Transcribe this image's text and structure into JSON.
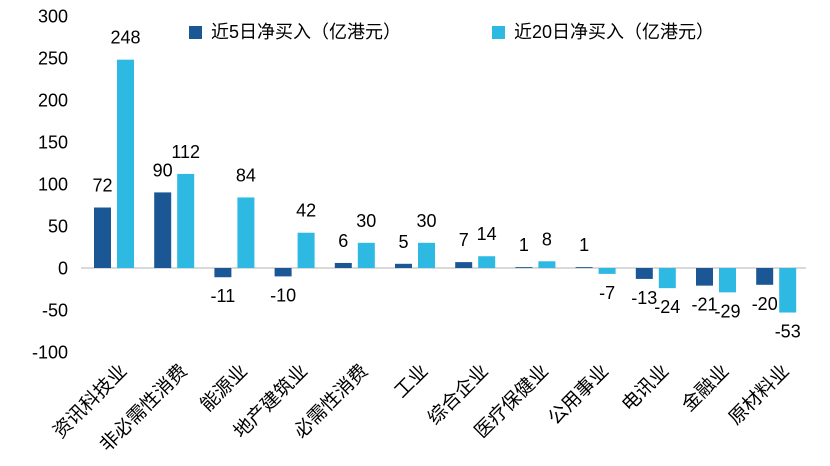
{
  "chart_data": {
    "type": "bar",
    "categories": [
      "资讯科技业",
      "非必需性消费",
      "能源业",
      "地产建筑业",
      "必需性消费",
      "工业",
      "综合企业",
      "医疗保健业",
      "公用事业",
      "电讯业",
      "金融业",
      "原材料业"
    ],
    "series": [
      {
        "name": "近5日净买入（亿港元）",
        "color": "#1a5794",
        "values": [
          72,
          90,
          -11,
          -10,
          6,
          5,
          7,
          1,
          1,
          -13,
          -21,
          -20
        ]
      },
      {
        "name": "近20日净买入（亿港元）",
        "color": "#2db9e2",
        "values": [
          248,
          112,
          84,
          42,
          30,
          30,
          14,
          8,
          -7,
          -24,
          -29,
          -53
        ]
      }
    ],
    "title": "",
    "xlabel": "",
    "ylabel": "",
    "ylim": [
      -100,
      300
    ],
    "ytick_step": 50,
    "yticks": [
      300,
      250,
      200,
      150,
      100,
      50,
      0,
      -50,
      -100
    ],
    "grid": false,
    "legend_position": "top",
    "data_labels": true,
    "axis_line_color": "#d9d9d9",
    "text_color": "#000000",
    "background_color": "#ffffff"
  }
}
